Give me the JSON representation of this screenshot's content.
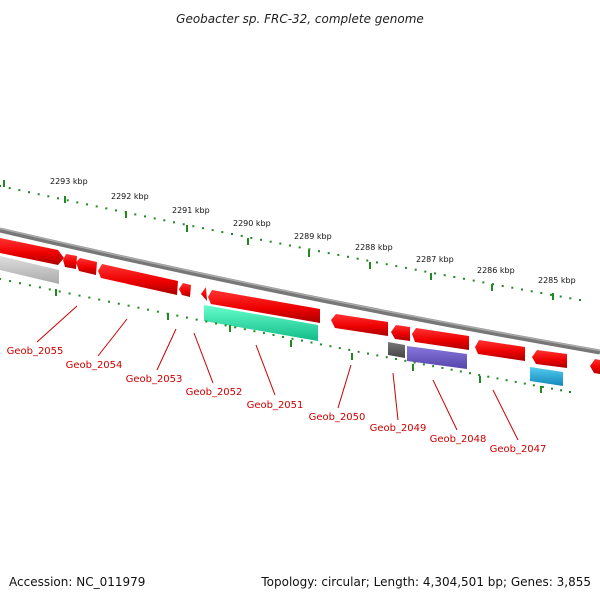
{
  "title": "Geobacter sp. FRC-32, complete genome",
  "ruler_labels": [
    "2293 kbp",
    "2292 kbp",
    "2291 kbp",
    "2290 kbp",
    "2289 kbp",
    "2288 kbp",
    "2287 kbp",
    "2286 kbp",
    "2285 kbp"
  ],
  "loci": [
    "Geob_2055",
    "Geob_2054",
    "Geob_2053",
    "Geob_2052",
    "Geob_2051",
    "Geob_2050",
    "Geob_2049",
    "Geob_2048",
    "Geob_2047"
  ],
  "footer": {
    "accession": "Accession: NC_011979",
    "summary": "Topology: circular; Length: 4,304,501 bp; Genes: 3,855"
  },
  "colors": {
    "forward_gene": "#ee0000",
    "backbone": "#888888",
    "ruler_tick": "#228822",
    "locus_label": "#cc0000",
    "rna_gene": "#33ddaa",
    "purple_gene": "#7766cc",
    "cyan_gene": "#22aadd",
    "grey_gene": "#bbbbbb",
    "dark_gene": "#555555"
  }
}
